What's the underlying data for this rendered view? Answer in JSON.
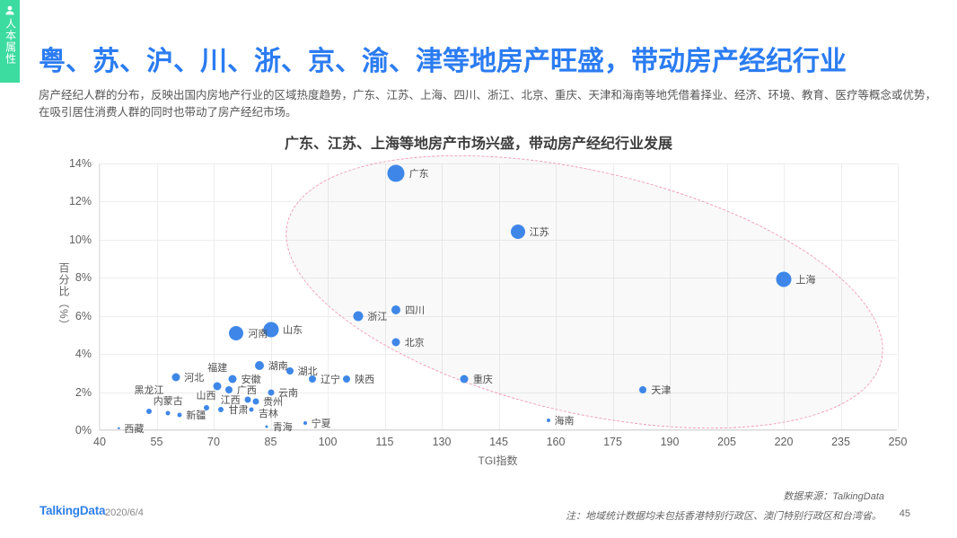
{
  "colors": {
    "accent": "#2b7cf2",
    "bubble": "#3e87e8",
    "sidebar_green": "#3cdb9f",
    "logo_blue": "#2f7fe8",
    "ellipse_pink": "#f29ab5"
  },
  "sidebar": {
    "label": "人本属性",
    "icon": "person-icon"
  },
  "page": {
    "title": "粤、苏、沪、川、浙、京、渝、津等地房产旺盛，带动房产经纪行业",
    "body_line1": "房产经纪人群的分布，反映出国内房地产行业的区域热度趋势，广东、江苏、上海、四川、浙江、北京、重庆、天津和海南等地凭借着择业、经济、环境、教育、医疗等概念",
    "body_line2": "或优势，在吸引居住消费人群的同时也带动了房产经纪市场。"
  },
  "footer": {
    "logo": "TalkingData",
    "date": "2020/6/4",
    "source": "数据来源：TalkingData",
    "note": "注：地域统计数据均未包括香港特别行政区、澳门特别行政区和台湾省。",
    "page_number": "45"
  },
  "chart_data": {
    "type": "scatter",
    "title": "广东、江苏、上海等地房产市场兴盛，带动房产经纪行业发展",
    "xlabel": "TGI指数",
    "ylabel": "百分比（%）",
    "xlim": [
      40,
      250
    ],
    "ylim": [
      0,
      14
    ],
    "x_ticks": [
      40,
      55,
      70,
      85,
      100,
      115,
      130,
      145,
      160,
      175,
      190,
      205,
      220,
      235,
      250
    ],
    "y_ticks": [
      0,
      2,
      4,
      6,
      8,
      10,
      12,
      14
    ],
    "grid": true,
    "legend": "none",
    "highlight_ellipse": {
      "present": true,
      "style": "pink-dashed",
      "covers": "广东、江苏、上海、四川、北京、重庆、天津、海南等高TGI区域"
    },
    "points": [
      {
        "name": "广东",
        "tgi": 118,
        "pct": 13.5,
        "r": 9.5,
        "lp": "right"
      },
      {
        "name": "江苏",
        "tgi": 150,
        "pct": 10.4,
        "r": 8,
        "lp": "right"
      },
      {
        "name": "上海",
        "tgi": 220,
        "pct": 7.9,
        "r": 8.5,
        "lp": "right"
      },
      {
        "name": "四川",
        "tgi": 118,
        "pct": 6.3,
        "r": 5,
        "lp": "right"
      },
      {
        "name": "浙江",
        "tgi": 108,
        "pct": 6.0,
        "r": 5.5,
        "lp": "right"
      },
      {
        "name": "山东",
        "tgi": 85,
        "pct": 5.3,
        "r": 8.5,
        "lp": "right"
      },
      {
        "name": "河南",
        "tgi": 76,
        "pct": 5.1,
        "r": 8,
        "lp": "right"
      },
      {
        "name": "北京",
        "tgi": 118,
        "pct": 4.6,
        "r": 4.5,
        "lp": "right"
      },
      {
        "name": "湖南",
        "tgi": 82,
        "pct": 3.4,
        "r": 5,
        "lp": "right"
      },
      {
        "name": "湖北",
        "tgi": 90,
        "pct": 3.1,
        "r": 4,
        "lp": "right"
      },
      {
        "name": "河北",
        "tgi": 60,
        "pct": 2.8,
        "r": 4.5,
        "lp": "right"
      },
      {
        "name": "安徽",
        "tgi": 75,
        "pct": 2.7,
        "r": 4.5,
        "lp": "right"
      },
      {
        "name": "辽宁",
        "tgi": 96,
        "pct": 2.7,
        "r": 4,
        "lp": "right"
      },
      {
        "name": "陕西",
        "tgi": 105,
        "pct": 2.7,
        "r": 4,
        "lp": "right"
      },
      {
        "name": "重庆",
        "tgi": 136,
        "pct": 2.7,
        "r": 4.5,
        "lp": "right"
      },
      {
        "name": "福建",
        "tgi": 71,
        "pct": 2.3,
        "r": 4.5,
        "lp": "above",
        "ldy": -6
      },
      {
        "name": "广西",
        "tgi": 74,
        "pct": 2.1,
        "r": 4,
        "lp": "right"
      },
      {
        "name": "天津",
        "tgi": 183,
        "pct": 2.1,
        "r": 4,
        "lp": "right"
      },
      {
        "name": "云南",
        "tgi": 85,
        "pct": 2.0,
        "r": 3.5,
        "lp": "right"
      },
      {
        "name": "江西",
        "tgi": 79,
        "pct": 1.6,
        "r": 3.5,
        "lp": "left"
      },
      {
        "name": "贵州",
        "tgi": 81,
        "pct": 1.5,
        "r": 3.5,
        "lp": "right"
      },
      {
        "name": "山西",
        "tgi": 68,
        "pct": 1.2,
        "r": 3,
        "lp": "above"
      },
      {
        "name": "甘肃",
        "tgi": 72,
        "pct": 1.1,
        "r": 3,
        "lp": "right"
      },
      {
        "name": "吉林",
        "tgi": 80,
        "pct": 1.1,
        "r": 2.5,
        "lp": "right",
        "ldy": 4
      },
      {
        "name": "黑龙江",
        "tgi": 53,
        "pct": 1.0,
        "r": 3,
        "lp": "above",
        "ldy": -10
      },
      {
        "name": "内蒙古",
        "tgi": 58,
        "pct": 0.9,
        "r": 2.5,
        "lp": "above"
      },
      {
        "name": "新疆",
        "tgi": 61,
        "pct": 0.8,
        "r": 2.5,
        "lp": "right"
      },
      {
        "name": "宁夏",
        "tgi": 94,
        "pct": 0.4,
        "r": 2,
        "lp": "right"
      },
      {
        "name": "青海",
        "tgi": 84,
        "pct": 0.2,
        "r": 1.5,
        "lp": "right"
      },
      {
        "name": "海南",
        "tgi": 158,
        "pct": 0.5,
        "r": 2,
        "lp": "right"
      },
      {
        "name": "西藏",
        "tgi": 45,
        "pct": 0.1,
        "r": 1.2,
        "lp": "right"
      }
    ]
  }
}
